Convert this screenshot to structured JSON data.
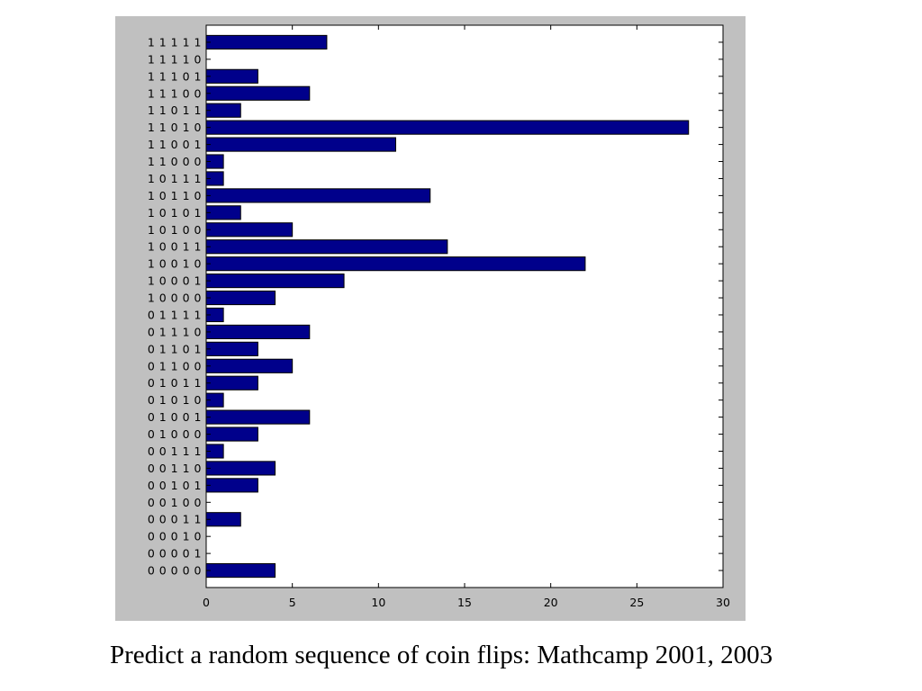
{
  "caption": "Predict a random sequence of coin flips: Mathcamp 2001, 2003",
  "colors": {
    "bar_fill": "#00008b",
    "bar_stroke": "#000000",
    "figure_background": "#c0c0c0",
    "plot_background": "#ffffff"
  },
  "chart_data": {
    "type": "bar",
    "orientation": "horizontal",
    "title": "",
    "xlabel": "",
    "ylabel": "",
    "xlim": [
      0,
      30
    ],
    "x_ticks": [
      0,
      5,
      10,
      15,
      20,
      25,
      30
    ],
    "grid": false,
    "categories": [
      "1 1 1 1 1",
      "1 1 1 1 0",
      "1 1 1 0 1",
      "1 1 1 0 0",
      "1 1 0 1 1",
      "1 1 0 1 0",
      "1 1 0 0 1",
      "1 1 0 0 0",
      "1 0 1 1 1",
      "1 0 1 1 0",
      "1 0 1 0 1",
      "1 0 1 0 0",
      "1 0 0 1 1",
      "1 0 0 1 0",
      "1 0 0 0 1",
      "1 0 0 0 0",
      "0 1 1 1 1",
      "0 1 1 1 0",
      "0 1 1 0 1",
      "0 1 1 0 0",
      "0 1 0 1 1",
      "0 1 0 1 0",
      "0 1 0 0 1",
      "0 1 0 0 0",
      "0 0 1 1 1",
      "0 0 1 1 0",
      "0 0 1 0 1",
      "0 0 1 0 0",
      "0 0 0 1 1",
      "0 0 0 1 0",
      "0 0 0 0 1",
      "0 0 0 0 0"
    ],
    "values": [
      7,
      0,
      3,
      6,
      2,
      28,
      11,
      1,
      1,
      13,
      2,
      5,
      14,
      22,
      8,
      4,
      1,
      6,
      3,
      5,
      3,
      1,
      6,
      3,
      1,
      4,
      3,
      0,
      2,
      0,
      0,
      4
    ]
  }
}
